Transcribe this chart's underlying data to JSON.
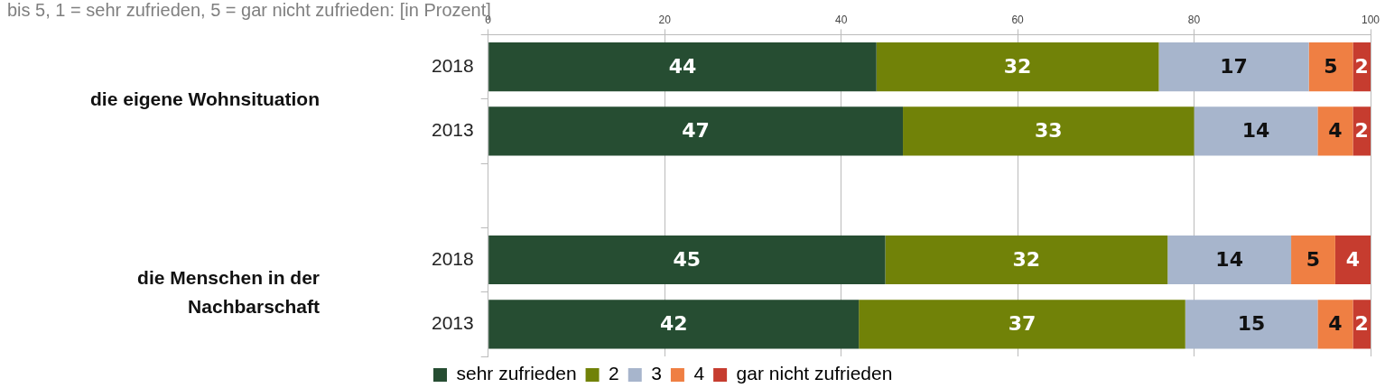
{
  "chart_data": {
    "type": "bar",
    "orientation": "horizontal",
    "stacked": true,
    "title": "bis 5, 1 = sehr zufrieden, 5 = gar nicht zufrieden: [in Prozent]",
    "categories": [
      "2018",
      "2013",
      null,
      "2018",
      "2013"
    ],
    "annotations": [
      "die eigene Wohnsituation",
      "die Menschen in der Nachbarschaft"
    ],
    "series": [
      {
        "name": "sehr zufrieden",
        "color": "#264d32",
        "values": [
          44,
          47,
          null,
          45,
          42
        ]
      },
      {
        "name": "2",
        "color": "#718208",
        "values": [
          32,
          33,
          null,
          32,
          37
        ]
      },
      {
        "name": "3",
        "color": "#a7b5cc",
        "values": [
          17,
          14,
          null,
          14,
          15
        ]
      },
      {
        "name": "4",
        "color": "#ef7f43",
        "values": [
          5,
          4,
          null,
          5,
          4
        ]
      },
      {
        "name": "gar nicht zufrieden",
        "color": "#c63c2f",
        "values": [
          2,
          2,
          null,
          4,
          2
        ]
      }
    ],
    "xlim": [
      0,
      100
    ],
    "xticks": [
      0,
      20,
      40,
      60,
      80,
      100
    ],
    "grid": "x",
    "legend": "bottom",
    "data_labels": true
  }
}
